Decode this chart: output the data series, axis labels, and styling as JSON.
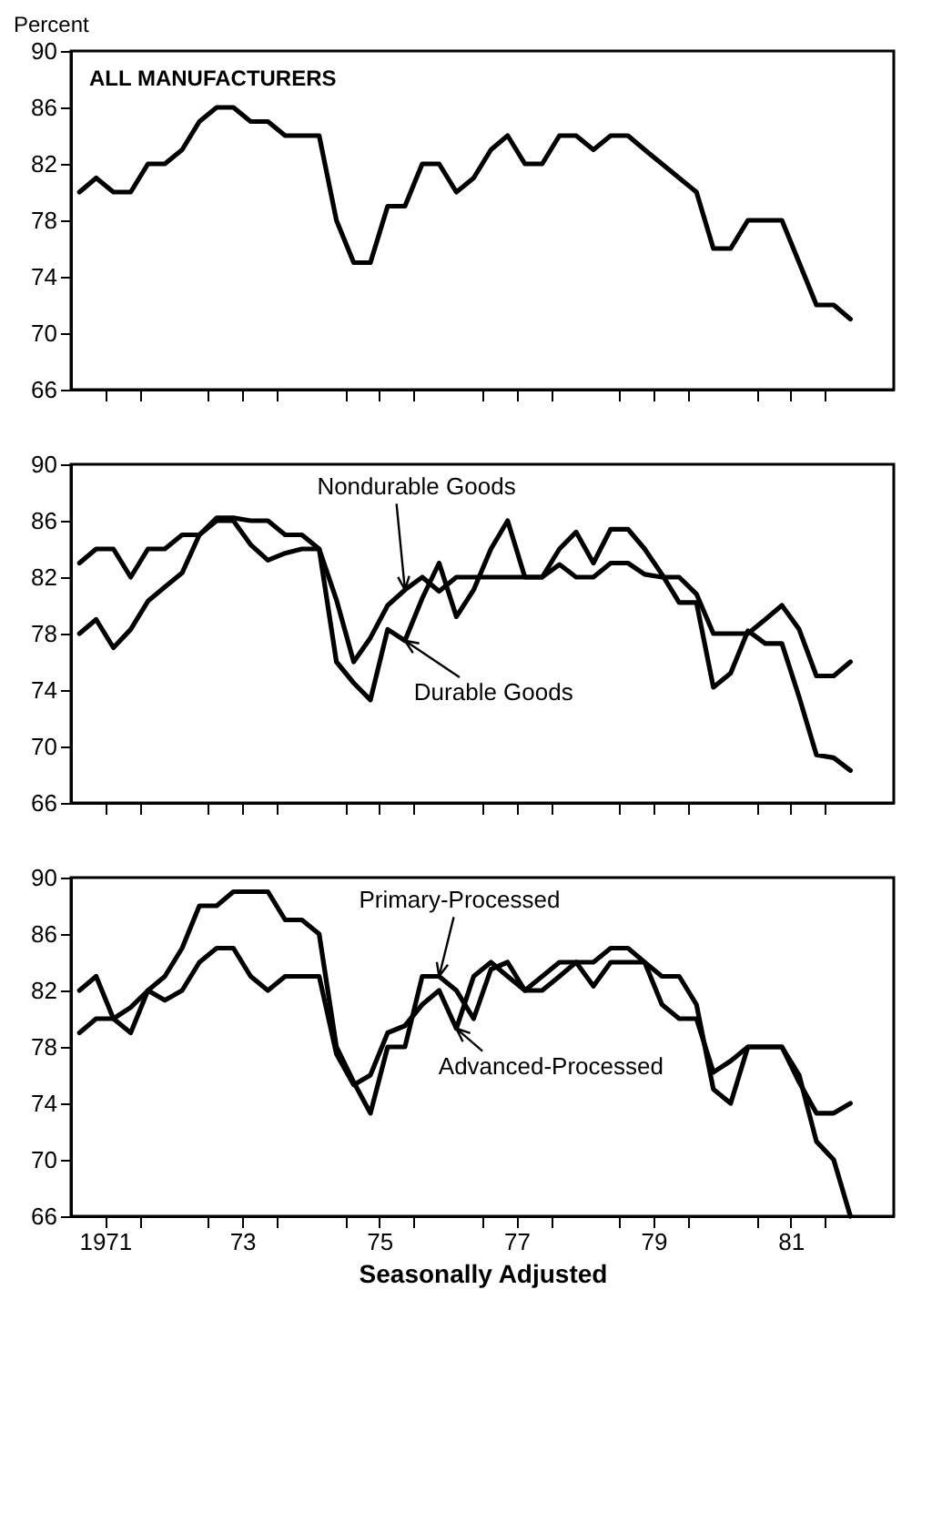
{
  "chart_data": [
    {
      "type": "line",
      "ylabel": "Percent",
      "annotations": [
        "ALL MANUFACTURERS"
      ],
      "tick_labels": "y",
      "xticks": [
        {
          "value": "1971-07-01",
          "label": null
        },
        {
          "value": "1972-01-01",
          "label": null
        },
        {
          "value": "1973-01-01",
          "label": null
        },
        {
          "value": "1973-07-01",
          "label": null
        },
        {
          "value": "1974-01-01",
          "label": null
        },
        {
          "value": "1975-01-01",
          "label": null
        },
        {
          "value": "1975-07-01",
          "label": null
        },
        {
          "value": "1976-01-01",
          "label": null
        },
        {
          "value": "1977-01-01",
          "label": null
        },
        {
          "value": "1977-07-01",
          "label": null
        },
        {
          "value": "1978-01-01",
          "label": null
        },
        {
          "value": "1979-01-01",
          "label": null
        },
        {
          "value": "1979-07-01",
          "label": null
        },
        {
          "value": "1980-01-01",
          "label": null
        },
        {
          "value": "1981-01-01",
          "label": null
        },
        {
          "value": "1981-07-01",
          "label": null
        },
        {
          "value": "1982-01-01",
          "label": null
        }
      ],
      "x": [
        "1971-02-15",
        "1971-05-15",
        "1971-08-15",
        "1971-11-15",
        "1972-02-15",
        "1972-05-15",
        "1972-08-15",
        "1972-11-15",
        "1973-02-15",
        "1973-05-15",
        "1973-08-15",
        "1973-11-15",
        "1974-02-15",
        "1974-05-15",
        "1974-08-15",
        "1974-11-15",
        "1975-02-15",
        "1975-05-15",
        "1975-08-15",
        "1975-11-15",
        "1976-02-15",
        "1976-05-15",
        "1976-08-15",
        "1976-11-15",
        "1977-02-15",
        "1977-05-15",
        "1977-08-15",
        "1977-11-15",
        "1978-02-15",
        "1978-05-15",
        "1978-08-15",
        "1978-11-15",
        "1979-02-15",
        "1979-05-15",
        "1979-08-15",
        "1979-11-15",
        "1980-02-15",
        "1980-05-15",
        "1980-08-15",
        "1980-11-15",
        "1981-02-15",
        "1981-05-15",
        "1981-08-15",
        "1981-11-15",
        "1982-02-15",
        "1982-05-15"
      ],
      "series": [
        {
          "color": "#000000",
          "values": [
            80,
            81,
            80,
            80,
            82,
            82,
            83,
            85,
            86,
            86,
            85,
            85,
            84,
            84,
            84,
            78,
            75,
            75,
            79,
            79,
            82,
            82,
            80,
            81,
            83,
            84,
            82,
            82,
            84,
            84,
            83,
            84,
            84,
            83,
            82,
            81,
            80,
            76,
            76,
            78,
            78,
            78,
            75,
            72,
            72,
            71
          ]
        }
      ],
      "xlim": [
        "1971-01-01",
        "1983-01-01"
      ],
      "ylim": [
        66,
        90
      ],
      "yticks": [
        66,
        70,
        74,
        78,
        82,
        86,
        90
      ]
    },
    {
      "type": "line",
      "tick_labels": "y",
      "xticks": [
        {
          "value": "1971-07-01",
          "label": null
        },
        {
          "value": "1972-01-01",
          "label": null
        },
        {
          "value": "1973-01-01",
          "label": null
        },
        {
          "value": "1973-07-01",
          "label": null
        },
        {
          "value": "1974-01-01",
          "label": null
        },
        {
          "value": "1975-01-01",
          "label": null
        },
        {
          "value": "1975-07-01",
          "label": null
        },
        {
          "value": "1976-01-01",
          "label": null
        },
        {
          "value": "1977-01-01",
          "label": null
        },
        {
          "value": "1977-07-01",
          "label": null
        },
        {
          "value": "1978-01-01",
          "label": null
        },
        {
          "value": "1979-01-01",
          "label": null
        },
        {
          "value": "1979-07-01",
          "label": null
        },
        {
          "value": "1980-01-01",
          "label": null
        },
        {
          "value": "1981-01-01",
          "label": null
        },
        {
          "value": "1981-07-01",
          "label": null
        },
        {
          "value": "1982-01-01",
          "label": null
        }
      ],
      "x": [
        "1971-02-15",
        "1971-05-15",
        "1971-08-15",
        "1971-11-15",
        "1972-02-15",
        "1972-05-15",
        "1972-08-15",
        "1972-11-15",
        "1973-02-15",
        "1973-05-15",
        "1973-08-15",
        "1973-11-15",
        "1974-02-15",
        "1974-05-15",
        "1974-08-15",
        "1974-11-15",
        "1975-02-15",
        "1975-05-15",
        "1975-08-15",
        "1975-11-15",
        "1976-02-15",
        "1976-05-15",
        "1976-08-15",
        "1976-11-15",
        "1977-02-15",
        "1977-05-15",
        "1977-08-15",
        "1977-11-15",
        "1978-02-15",
        "1978-05-15",
        "1978-08-15",
        "1978-11-15",
        "1979-02-15",
        "1979-05-15",
        "1979-08-15",
        "1979-11-15",
        "1980-02-15",
        "1980-05-15",
        "1980-08-15",
        "1980-11-15",
        "1981-02-15",
        "1981-05-15",
        "1981-08-15",
        "1981-11-15",
        "1982-02-15",
        "1982-05-15"
      ],
      "series": [
        {
          "name": "Nondurable Goods",
          "color": "#000000",
          "values": [
            83,
            84,
            84,
            82,
            84,
            84,
            85,
            85,
            86,
            86,
            84.3,
            83.2,
            83.7,
            84,
            84,
            80.4,
            76,
            77.7,
            80,
            81.1,
            82,
            81,
            82,
            82,
            82,
            82,
            82,
            82,
            82.9,
            82,
            82,
            83,
            83,
            82.2,
            82,
            82,
            80.8,
            78,
            78,
            78,
            79,
            80,
            78.3,
            75,
            75,
            76
          ]
        },
        {
          "name": "Durable Goods",
          "color": "#000000",
          "values": [
            78,
            79,
            77,
            78.3,
            80.3,
            81.3,
            82.3,
            85,
            86.2,
            86.2,
            86,
            86,
            85,
            85,
            84,
            76,
            74.5,
            73.3,
            78.3,
            77.5,
            80.5,
            83,
            79.2,
            81.1,
            84,
            86,
            82,
            82,
            84,
            85.2,
            83,
            85.4,
            85.4,
            84,
            82.2,
            80.2,
            80.2,
            74.2,
            75.2,
            78.2,
            77.3,
            77.3,
            73.5,
            69.4,
            69.2,
            68.3
          ]
        }
      ],
      "xlim": [
        "1971-01-01",
        "1983-01-01"
      ],
      "ylim": [
        66,
        90
      ],
      "yticks": [
        66,
        70,
        74,
        78,
        82,
        86,
        90
      ]
    },
    {
      "type": "line",
      "xlabel": "Seasonally Adjusted",
      "x": [
        "1971-02-15",
        "1971-05-15",
        "1971-08-15",
        "1971-11-15",
        "1972-02-15",
        "1972-05-15",
        "1972-08-15",
        "1972-11-15",
        "1973-02-15",
        "1973-05-15",
        "1973-08-15",
        "1973-11-15",
        "1974-02-15",
        "1974-05-15",
        "1974-08-15",
        "1974-11-15",
        "1975-02-15",
        "1975-05-15",
        "1975-08-15",
        "1975-11-15",
        "1976-02-15",
        "1976-05-15",
        "1976-08-15",
        "1976-11-15",
        "1977-02-15",
        "1977-05-15",
        "1977-08-15",
        "1977-11-15",
        "1978-02-15",
        "1978-05-15",
        "1978-08-15",
        "1978-11-15",
        "1979-02-15",
        "1979-05-15",
        "1979-08-15",
        "1979-11-15",
        "1980-02-15",
        "1980-05-15",
        "1980-08-15",
        "1980-11-15",
        "1981-02-15",
        "1981-05-15",
        "1981-08-15",
        "1981-11-15",
        "1982-02-15",
        "1982-05-15"
      ],
      "series": [
        {
          "name": "Primary-Processed",
          "color": "#000000",
          "values": [
            82,
            83,
            80,
            80.8,
            82,
            83,
            85,
            88,
            88,
            89,
            89,
            89,
            87,
            87,
            86,
            78,
            75.5,
            73.3,
            78,
            78,
            83,
            83,
            82,
            80,
            83.5,
            84,
            82,
            83,
            84,
            84,
            84,
            85,
            85,
            84,
            83,
            83,
            81,
            75,
            74,
            78,
            78,
            78,
            76,
            71.3,
            70,
            66
          ]
        },
        {
          "name": "Advanced-Processed",
          "color": "#000000",
          "values": [
            79,
            80,
            80,
            79,
            82,
            81.3,
            82,
            84,
            85,
            85,
            83,
            82,
            83,
            83,
            83,
            77.5,
            75.3,
            76,
            79,
            79.5,
            81,
            82,
            79.3,
            83,
            84,
            83,
            82,
            82,
            83,
            84,
            82.3,
            84,
            84,
            84,
            81,
            80,
            80,
            76.2,
            77,
            78,
            78,
            78,
            75.5,
            73.3,
            73.3,
            74
          ]
        }
      ],
      "xlim": [
        "1971-01-01",
        "1983-01-01"
      ],
      "ylim": [
        66,
        90
      ],
      "yticks": [
        66,
        70,
        74,
        78,
        82,
        86,
        90
      ],
      "xticks": [
        {
          "value": "1971-07-01",
          "label": "1971"
        },
        {
          "value": "1972-01-01",
          "label": null
        },
        {
          "value": "1973-01-01",
          "label": null
        },
        {
          "value": "1973-07-01",
          "label": "73"
        },
        {
          "value": "1974-01-01",
          "label": null
        },
        {
          "value": "1975-01-01",
          "label": null
        },
        {
          "value": "1975-07-01",
          "label": "75"
        },
        {
          "value": "1976-01-01",
          "label": null
        },
        {
          "value": "1977-01-01",
          "label": null
        },
        {
          "value": "1977-07-01",
          "label": "77"
        },
        {
          "value": "1978-01-01",
          "label": null
        },
        {
          "value": "1979-01-01",
          "label": null
        },
        {
          "value": "1979-07-01",
          "label": "79"
        },
        {
          "value": "1980-01-01",
          "label": null
        },
        {
          "value": "1981-01-01",
          "label": null
        },
        {
          "value": "1981-07-01",
          "label": "81"
        },
        {
          "value": "1982-01-01",
          "label": null
        }
      ]
    }
  ]
}
